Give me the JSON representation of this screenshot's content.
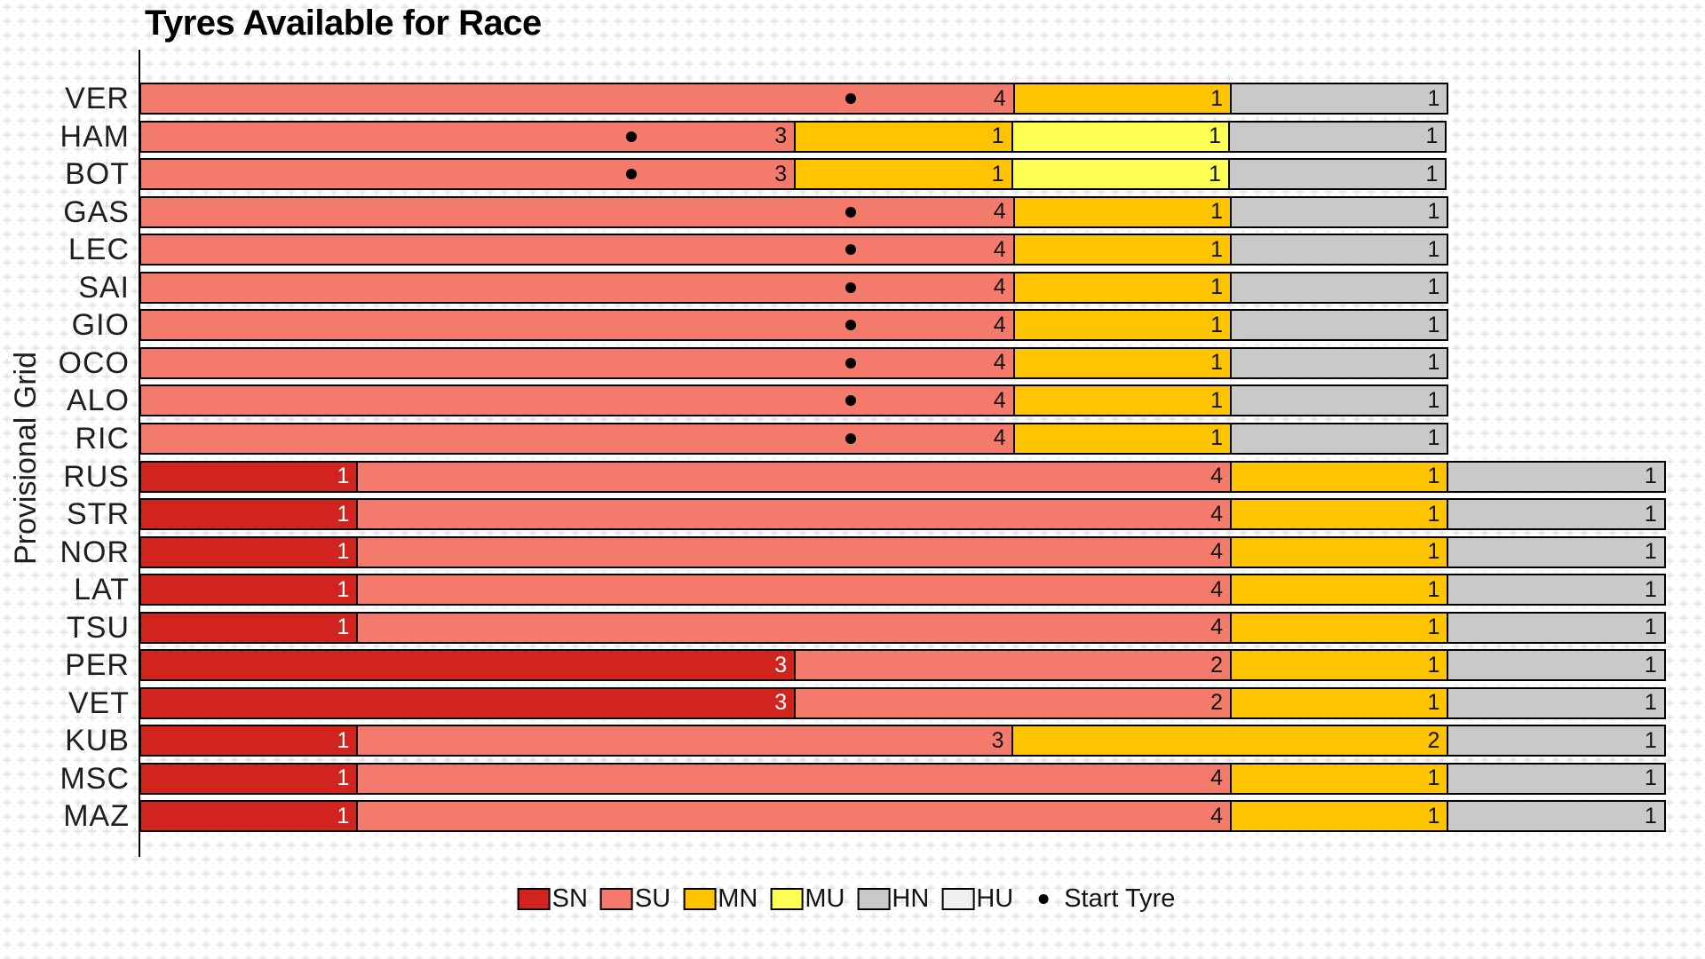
{
  "chart_data": {
    "type": "bar",
    "orientation": "horizontal",
    "stacked": true,
    "title": "Tyres Available for Race",
    "ylabel": "Provisional Grid",
    "xlabel": "",
    "xlim": [
      0,
      7
    ],
    "grid": "light plus-mark pattern over white",
    "legend_position": "bottom center",
    "categories": [
      "VER",
      "HAM",
      "BOT",
      "GAS",
      "LEC",
      "SAI",
      "GIO",
      "OCO",
      "ALO",
      "RIC",
      "RUS",
      "STR",
      "NOR",
      "LAT",
      "TSU",
      "PER",
      "VET",
      "KUB",
      "MSC",
      "MAZ"
    ],
    "series": [
      {
        "name": "SN",
        "color": "#d2241e",
        "label_color": "#ffffff",
        "values": [
          0,
          0,
          0,
          0,
          0,
          0,
          0,
          0,
          0,
          0,
          1,
          1,
          1,
          1,
          1,
          3,
          3,
          1,
          1,
          1
        ]
      },
      {
        "name": "SU",
        "color": "#f47b6c",
        "label_color": "#141414",
        "values": [
          4,
          3,
          3,
          4,
          4,
          4,
          4,
          4,
          4,
          4,
          4,
          4,
          4,
          4,
          4,
          2,
          2,
          3,
          4,
          4
        ]
      },
      {
        "name": "MN",
        "color": "#ffc400",
        "label_color": "#141414",
        "values": [
          1,
          1,
          1,
          1,
          1,
          1,
          1,
          1,
          1,
          1,
          1,
          1,
          1,
          1,
          1,
          1,
          1,
          2,
          1,
          1
        ]
      },
      {
        "name": "MU",
        "color": "#fdff54",
        "label_color": "#141414",
        "values": [
          0,
          1,
          1,
          0,
          0,
          0,
          0,
          0,
          0,
          0,
          0,
          0,
          0,
          0,
          0,
          0,
          0,
          0,
          0,
          0
        ]
      },
      {
        "name": "HN",
        "color": "#c9c9c9",
        "label_color": "#141414",
        "values": [
          1,
          1,
          1,
          1,
          1,
          1,
          1,
          1,
          1,
          1,
          1,
          1,
          1,
          1,
          1,
          1,
          1,
          1,
          1,
          1
        ]
      },
      {
        "name": "HU",
        "color": "#f0f0f0",
        "label_color": "#141414",
        "values": [
          0,
          0,
          0,
          0,
          0,
          0,
          0,
          0,
          0,
          0,
          0,
          0,
          0,
          0,
          0,
          0,
          0,
          0,
          0,
          0
        ]
      }
    ],
    "start_tyre_marker": {
      "symbol": "dot",
      "legend_label": "Start Tyre",
      "marked_on_series": "SU",
      "drivers_with_marker": [
        "VER",
        "HAM",
        "BOT",
        "GAS",
        "LEC",
        "SAI",
        "GIO",
        "OCO",
        "ALO",
        "RIC"
      ],
      "offset_units_before_segment_end": 0.75
    },
    "legend_entries": [
      "SN",
      "SU",
      "MN",
      "MU",
      "HN",
      "HU",
      "Start Tyre"
    ]
  }
}
